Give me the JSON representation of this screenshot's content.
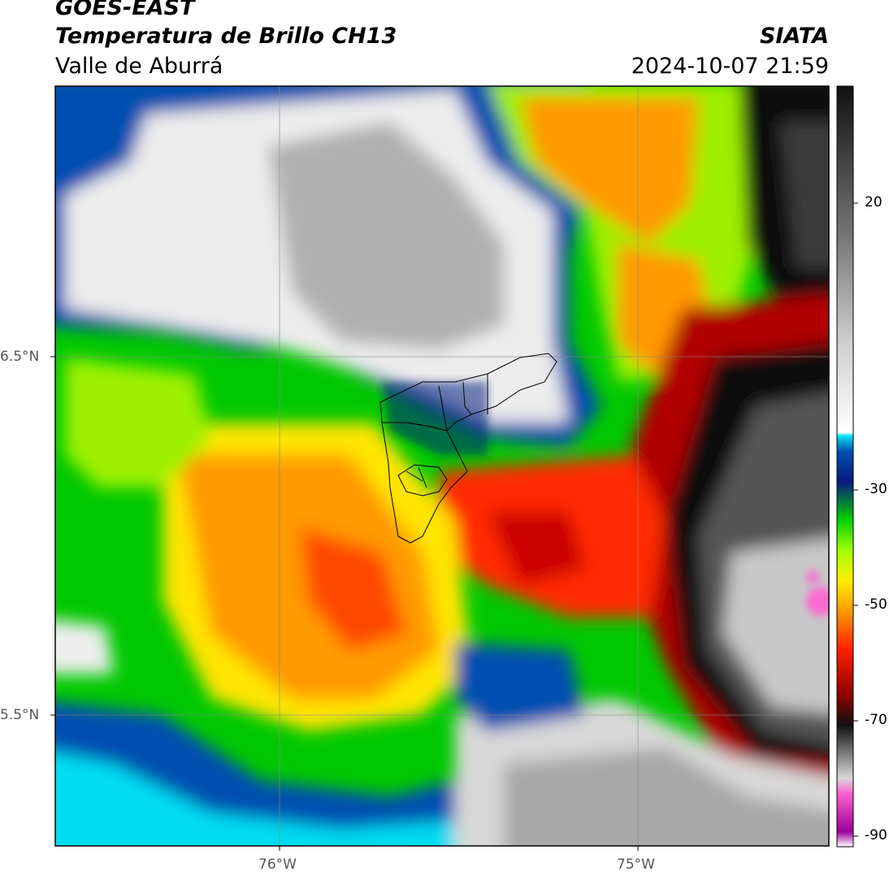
{
  "header": {
    "satellite": "GOES-EAST",
    "product": "Temperatura de Brillo CH13",
    "region": "Valle de Aburrá",
    "agency": "SIATA",
    "timestamp": "2024-10-07 21:59"
  },
  "axes": {
    "lat_labels": [
      "6.5°N",
      "5.5°N"
    ],
    "lon_labels": [
      "76°W",
      "75°W"
    ]
  },
  "colorbar": {
    "ticks": [
      "20",
      "-30",
      "-50",
      "-70",
      "-90"
    ],
    "colors": {
      "black": "#111111",
      "gray_dark": "#444444",
      "gray_mid": "#9a9a9a",
      "gray_light": "#e6e6e6",
      "cyan": "#00e0f0",
      "blue": "#0050b0",
      "navy": "#0a1a80",
      "green": "#00d000",
      "lime": "#a0ff00",
      "yellow": "#ffee00",
      "orange": "#ff9a00",
      "red": "#ff2000",
      "dark_red": "#900000",
      "pink": "#ff60d0",
      "purple": "#9a009a"
    }
  }
}
